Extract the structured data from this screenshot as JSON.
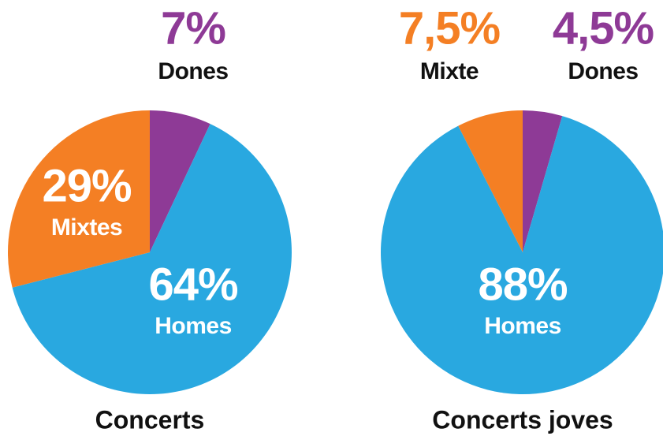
{
  "chart_data": [
    {
      "type": "pie",
      "title": "Concerts",
      "categories": [
        "Dones",
        "Homes",
        "Mixtes"
      ],
      "values": [
        7,
        64,
        29
      ],
      "value_labels": [
        "7%",
        "64%",
        "29%"
      ],
      "colors": [
        "#8e3a96",
        "#29a8e0",
        "#f47f24"
      ]
    },
    {
      "type": "pie",
      "title": "Concerts joves",
      "categories": [
        "Dones",
        "Homes",
        "Mixte"
      ],
      "values": [
        4.5,
        88,
        7.5
      ],
      "value_labels": [
        "4,5%",
        "88%",
        "7,5%"
      ],
      "colors": [
        "#8e3a96",
        "#29a8e0",
        "#f47f24"
      ]
    }
  ]
}
